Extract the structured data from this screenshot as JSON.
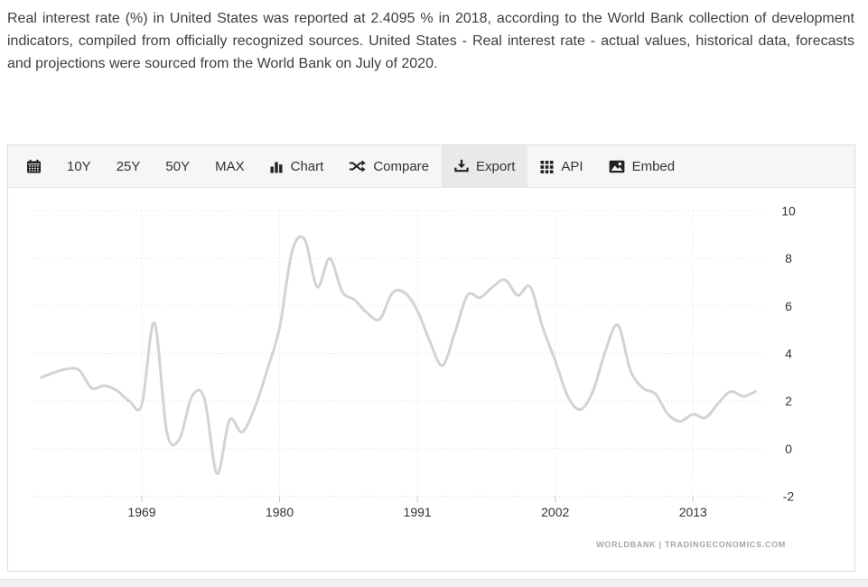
{
  "description": {
    "text": "Real interest rate (%) in United States was reported at 2.4095 % in 2018, according to the World Bank collection of development indicators, compiled from officially recognized sources. United States - Real interest rate - actual values, historical data, forecasts and projections were sourced from the World Bank on July of 2020."
  },
  "toolbar": {
    "items": [
      {
        "id": "calendar",
        "label": "",
        "icon": "calendar-icon"
      },
      {
        "id": "10y",
        "label": "10Y"
      },
      {
        "id": "25y",
        "label": "25Y"
      },
      {
        "id": "50y",
        "label": "50Y"
      },
      {
        "id": "max",
        "label": "MAX"
      },
      {
        "id": "chart",
        "label": "Chart",
        "icon": "bar-chart-icon"
      },
      {
        "id": "compare",
        "label": "Compare",
        "icon": "shuffle-icon"
      },
      {
        "id": "export",
        "label": "Export",
        "icon": "download-icon",
        "active": true
      },
      {
        "id": "api",
        "label": "API",
        "icon": "grid-icon"
      },
      {
        "id": "embed",
        "label": "Embed",
        "icon": "image-icon"
      }
    ]
  },
  "chart_data": {
    "type": "line",
    "title": "",
    "x": [
      1961,
      1962,
      1963,
      1964,
      1965,
      1966,
      1967,
      1968,
      1969,
      1970,
      1971,
      1972,
      1973,
      1974,
      1975,
      1976,
      1977,
      1978,
      1979,
      1980,
      1981,
      1982,
      1983,
      1984,
      1985,
      1986,
      1987,
      1988,
      1989,
      1990,
      1991,
      1992,
      1993,
      1994,
      1995,
      1996,
      1997,
      1998,
      1999,
      2000,
      2001,
      2002,
      2003,
      2004,
      2005,
      2006,
      2007,
      2008,
      2009,
      2010,
      2011,
      2012,
      2013,
      2014,
      2015,
      2016,
      2017,
      2018
    ],
    "values": [
      3.0,
      3.2,
      3.35,
      3.3,
      2.55,
      2.65,
      2.45,
      2.0,
      1.85,
      5.3,
      0.7,
      0.4,
      2.2,
      2.1,
      -1.05,
      1.2,
      0.7,
      1.7,
      3.3,
      5.1,
      8.3,
      8.8,
      6.8,
      8.0,
      6.6,
      6.25,
      5.7,
      5.45,
      6.55,
      6.55,
      5.8,
      4.5,
      3.5,
      4.9,
      6.45,
      6.35,
      6.8,
      7.1,
      6.45,
      6.8,
      5.1,
      3.7,
      2.2,
      1.65,
      2.4,
      4.1,
      5.2,
      3.3,
      2.55,
      2.3,
      1.45,
      1.15,
      1.45,
      1.3,
      1.9,
      2.4,
      2.2,
      2.4095
    ],
    "xticks": [
      1969,
      1980,
      1991,
      2002,
      2013
    ],
    "yticks": [
      10,
      8,
      6,
      4,
      2,
      0,
      -2
    ],
    "ylim": [
      -2,
      10
    ],
    "xlim": [
      1960.3,
      2018.8
    ],
    "grid": "dotted",
    "legend": "none",
    "line_color": "#d3d3d3",
    "grid_color": "#dcdcdc",
    "label_color": "#333333",
    "watermark": "WORLDBANK | TRADINGECONOMICS.COM",
    "last_reported_value": "2.4095",
    "last_reported_year": "2018"
  }
}
